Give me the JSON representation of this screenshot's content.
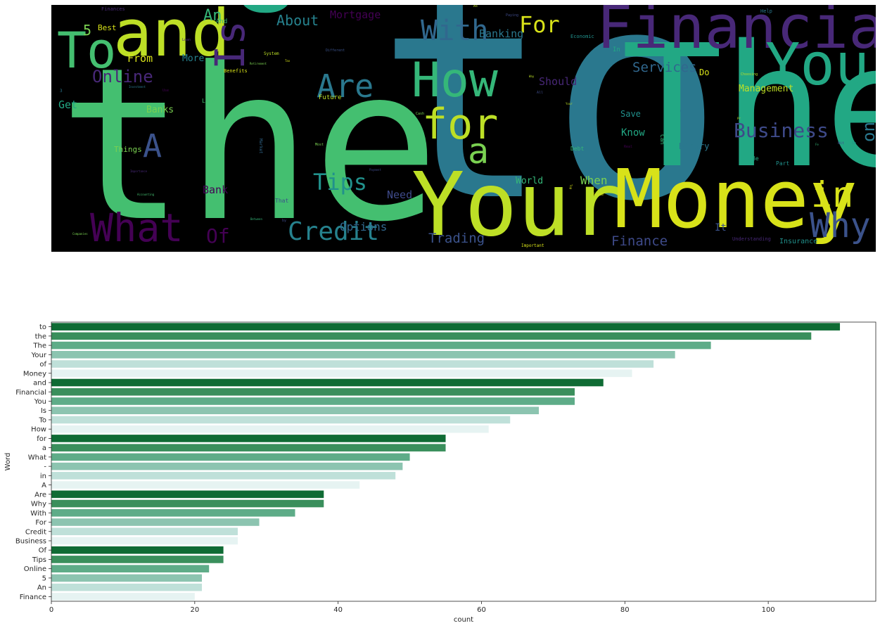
{
  "chart_data": [
    {
      "type": "wordcloud",
      "background": "#000000",
      "words": [
        {
          "text": "to",
          "color": "#2a788e"
        },
        {
          "text": "the",
          "color": "#44bf70"
        },
        {
          "text": "The",
          "color": "#22a884"
        },
        {
          "text": "Your",
          "color": "#bddf26"
        },
        {
          "text": "Money",
          "color": "#d8e219"
        },
        {
          "text": "Financial",
          "color": "#482878"
        },
        {
          "text": "and",
          "color": "#bddf26"
        },
        {
          "text": "of",
          "color": "#22a884"
        },
        {
          "text": "Is",
          "color": "#482878"
        },
        {
          "text": "To",
          "color": "#44bf70"
        },
        {
          "text": "You",
          "color": "#22a884"
        },
        {
          "text": "How",
          "color": "#35b779"
        },
        {
          "text": "What",
          "color": "#440154"
        },
        {
          "text": "for",
          "color": "#bddf26"
        },
        {
          "text": "a",
          "color": "#7ad151"
        },
        {
          "text": "in",
          "color": "#d8e219"
        },
        {
          "text": "Why",
          "color": "#3b528b"
        },
        {
          "text": "-",
          "color": "#2a788e"
        },
        {
          "text": "A",
          "color": "#3b528b"
        },
        {
          "text": "Are",
          "color": "#2a788e"
        },
        {
          "text": "With",
          "color": "#31688e"
        },
        {
          "text": "Credit",
          "color": "#26828e"
        },
        {
          "text": "For",
          "color": "#d8e219"
        },
        {
          "text": "Tips",
          "color": "#21918c"
        },
        {
          "text": "Business",
          "color": "#3e4a89"
        },
        {
          "text": "Of",
          "color": "#440154"
        },
        {
          "text": "Online",
          "color": "#482878"
        },
        {
          "text": "An",
          "color": "#35b779"
        },
        {
          "text": "5",
          "color": "#7ad151"
        },
        {
          "text": "on",
          "color": "#2a788e"
        },
        {
          "text": "About",
          "color": "#26828e"
        },
        {
          "text": "Mortgage",
          "color": "#440154"
        },
        {
          "text": "Banking",
          "color": "#2a788e"
        },
        {
          "text": "Services",
          "color": "#31688e"
        },
        {
          "text": "Finance",
          "color": "#3e4a89"
        },
        {
          "text": "Trading",
          "color": "#3b528b"
        },
        {
          "text": "Options",
          "color": "#31688e"
        },
        {
          "text": "When",
          "color": "#7ad151"
        },
        {
          "text": "World",
          "color": "#35b779"
        },
        {
          "text": "Need",
          "color": "#3e4a89"
        },
        {
          "text": "Bank",
          "color": "#440154"
        },
        {
          "text": "Banks",
          "color": "#7ad151"
        },
        {
          "text": "Know",
          "color": "#22a884"
        },
        {
          "text": "Should",
          "color": "#482878"
        },
        {
          "text": "Management",
          "color": "#bddf26"
        },
        {
          "text": "From",
          "color": "#d8e219"
        },
        {
          "text": "More",
          "color": "#26828e"
        },
        {
          "text": "Best",
          "color": "#d8e219"
        },
        {
          "text": "Get",
          "color": "#22a884"
        },
        {
          "text": "Save",
          "color": "#21918c"
        },
        {
          "text": "Binary",
          "color": "#2a788e"
        },
        {
          "text": "It",
          "color": "#3b528b"
        },
        {
          "text": "Insurance",
          "color": "#21918c"
        },
        {
          "text": "Do",
          "color": "#d8e219"
        },
        {
          "text": "Things",
          "color": "#7ad151"
        },
        {
          "text": "And",
          "color": "#35b779"
        },
        {
          "text": "Life",
          "color": "#44bf70"
        },
        {
          "text": "Future",
          "color": "#bddf26"
        },
        {
          "text": "Benefits",
          "color": "#d8e219"
        },
        {
          "text": "System",
          "color": "#bddf26"
        },
        {
          "text": "Economic",
          "color": "#21918c"
        },
        {
          "text": "Understanding",
          "color": "#482878"
        },
        {
          "text": "Important",
          "color": "#d8e219"
        },
        {
          "text": "Choosing",
          "color": "#bddf26"
        },
        {
          "text": "Help",
          "color": "#2a788e"
        },
        {
          "text": "Paying",
          "color": "#3e4a89"
        },
        {
          "text": "Finances",
          "color": "#482878"
        },
        {
          "text": "Different",
          "color": "#3b528b"
        },
        {
          "text": "In",
          "color": "#22a884"
        },
        {
          "text": "Debt",
          "color": "#35b779"
        },
        {
          "text": "Part",
          "color": "#21918c"
        },
        {
          "text": "Be",
          "color": "#22a884"
        },
        {
          "text": "Guide",
          "color": "#d8e219"
        },
        {
          "text": "That",
          "color": "#3b528b"
        },
        {
          "text": "Cash",
          "color": "#7ad151"
        },
        {
          "text": "Market",
          "color": "#31688e"
        },
        {
          "text": "Payment",
          "color": "#3e4a89"
        },
        {
          "text": "As",
          "color": "#bddf26"
        },
        {
          "text": "All",
          "color": "#3e4a89"
        },
        {
          "text": "Can",
          "color": "#35b779"
        },
        {
          "text": "Most",
          "color": "#7ad151"
        },
        {
          "text": "Use",
          "color": "#440154"
        },
        {
          "text": "Top",
          "color": "#d8e219"
        },
        {
          "text": "3",
          "color": "#2a788e"
        },
        {
          "text": "by",
          "color": "#3e4a89"
        },
        {
          "text": "Retirement",
          "color": "#7ad151"
        },
        {
          "text": "Investment",
          "color": "#2a788e"
        },
        {
          "text": "Importance",
          "color": "#482878"
        },
        {
          "text": "Accounting",
          "color": "#44bf70"
        },
        {
          "text": "Companies",
          "color": "#7ad151"
        },
        {
          "text": "Between",
          "color": "#35b779"
        },
        {
          "text": "Real",
          "color": "#440154"
        },
        {
          "text": "Way",
          "color": "#bddf26"
        },
        {
          "text": "Your",
          "color": "#bddf26"
        },
        {
          "text": "Tax",
          "color": "#d8e219"
        },
        {
          "text": "Loan",
          "color": "#482878"
        },
        {
          "text": "Wit",
          "color": "#3e4a89"
        },
        {
          "text": "Fe",
          "color": "#35b779"
        },
        {
          "text": "Ch",
          "color": "#21918c"
        },
        {
          "text": "Pr",
          "color": "#bddf26"
        }
      ]
    },
    {
      "type": "bar",
      "orientation": "horizontal",
      "xlabel": "count",
      "ylabel": "Word",
      "xlim": [
        0,
        115
      ],
      "xticks": [
        0,
        20,
        40,
        60,
        80,
        100
      ],
      "grid": false,
      "palette": [
        "#0f6b34",
        "#3a8f5c",
        "#5eac88",
        "#8cc4b0",
        "#bfe0d9",
        "#e6f3f2"
      ],
      "categories": [
        "to",
        "the",
        "The",
        "Your",
        "of",
        "Money",
        "and",
        "Financial",
        "You",
        "Is",
        "To",
        "How",
        "for",
        "a",
        "What",
        "-",
        "in",
        "A",
        "Are",
        "Why",
        "With",
        "For",
        "Credit",
        "Business",
        "Of",
        "Tips",
        "Online",
        "5",
        "An",
        "Finance"
      ],
      "values": [
        110,
        106,
        92,
        87,
        84,
        81,
        77,
        73,
        73,
        68,
        64,
        61,
        55,
        55,
        50,
        49,
        48,
        43,
        38,
        38,
        34,
        29,
        26,
        26,
        24,
        24,
        22,
        21,
        21,
        20
      ]
    }
  ]
}
